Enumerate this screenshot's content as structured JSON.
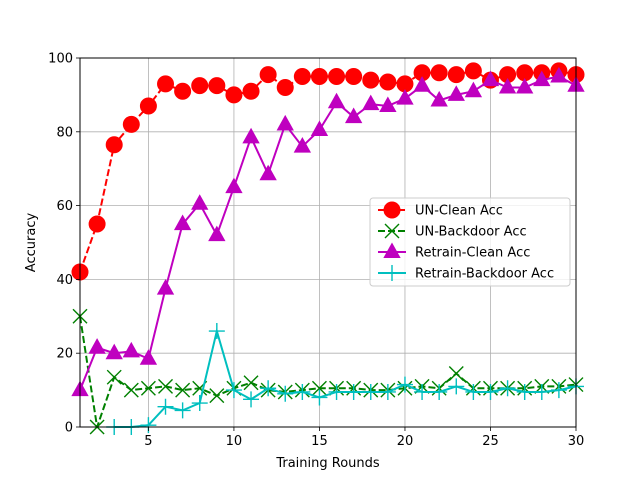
{
  "chart_data": {
    "type": "line",
    "title": "",
    "xlabel": "Training Rounds",
    "ylabel": "Accuracy",
    "xlim": [
      1,
      30
    ],
    "ylim": [
      0,
      100
    ],
    "x_ticks": [
      5,
      10,
      15,
      20,
      25,
      30
    ],
    "y_ticks": [
      0,
      20,
      40,
      60,
      80,
      100
    ],
    "grid": true,
    "legend_position": "center-right",
    "x": [
      1,
      2,
      3,
      4,
      5,
      6,
      7,
      8,
      9,
      10,
      11,
      12,
      13,
      14,
      15,
      16,
      17,
      18,
      19,
      20,
      21,
      22,
      23,
      24,
      25,
      26,
      27,
      28,
      29,
      30
    ],
    "series": [
      {
        "name": "UN-Clean Acc",
        "color": "#ff0000",
        "linestyle": "dashed",
        "marker": "circle",
        "values": [
          42,
          55,
          76.5,
          82,
          87,
          93,
          91,
          92.5,
          92.5,
          90,
          91,
          95.5,
          92,
          95,
          95,
          95,
          95,
          94,
          93.5,
          93,
          96,
          96,
          95.5,
          96.5,
          94,
          95.5,
          96,
          96,
          96.5,
          95.5
        ]
      },
      {
        "name": "UN-Backdoor Acc",
        "color": "#008000",
        "linestyle": "dashed",
        "marker": "x",
        "values": [
          30,
          0,
          13.5,
          10,
          10.5,
          11,
          10,
          10.5,
          8.5,
          10.5,
          12,
          10,
          9.5,
          10,
          10.5,
          10.5,
          10.5,
          10,
          10,
          10.5,
          11,
          10.5,
          14.5,
          10.5,
          10.5,
          10.5,
          10.5,
          11,
          11,
          11.5
        ]
      },
      {
        "name": "Retrain-Clean Acc",
        "color": "#bf00bf",
        "linestyle": "solid",
        "marker": "triangle",
        "values": [
          10,
          21.5,
          20,
          20.5,
          18.5,
          37.5,
          55,
          60.5,
          52,
          65,
          78.5,
          68.5,
          82,
          76,
          80.5,
          88,
          84,
          87.5,
          87,
          89,
          92.5,
          88.5,
          90,
          91,
          94,
          92,
          92,
          94,
          95,
          92.5
        ]
      },
      {
        "name": "Retrain-Backdoor Acc",
        "color": "#00bfbf",
        "linestyle": "solid",
        "marker": "plus",
        "values": [
          null,
          null,
          0,
          0,
          0.5,
          5.5,
          4.5,
          6.5,
          26,
          10,
          7.5,
          10.5,
          9,
          9.5,
          8,
          9.5,
          9.5,
          9.5,
          9.5,
          11.5,
          9.5,
          9.5,
          11,
          9.5,
          9.5,
          10.5,
          9.5,
          9.5,
          10,
          11
        ]
      }
    ]
  }
}
